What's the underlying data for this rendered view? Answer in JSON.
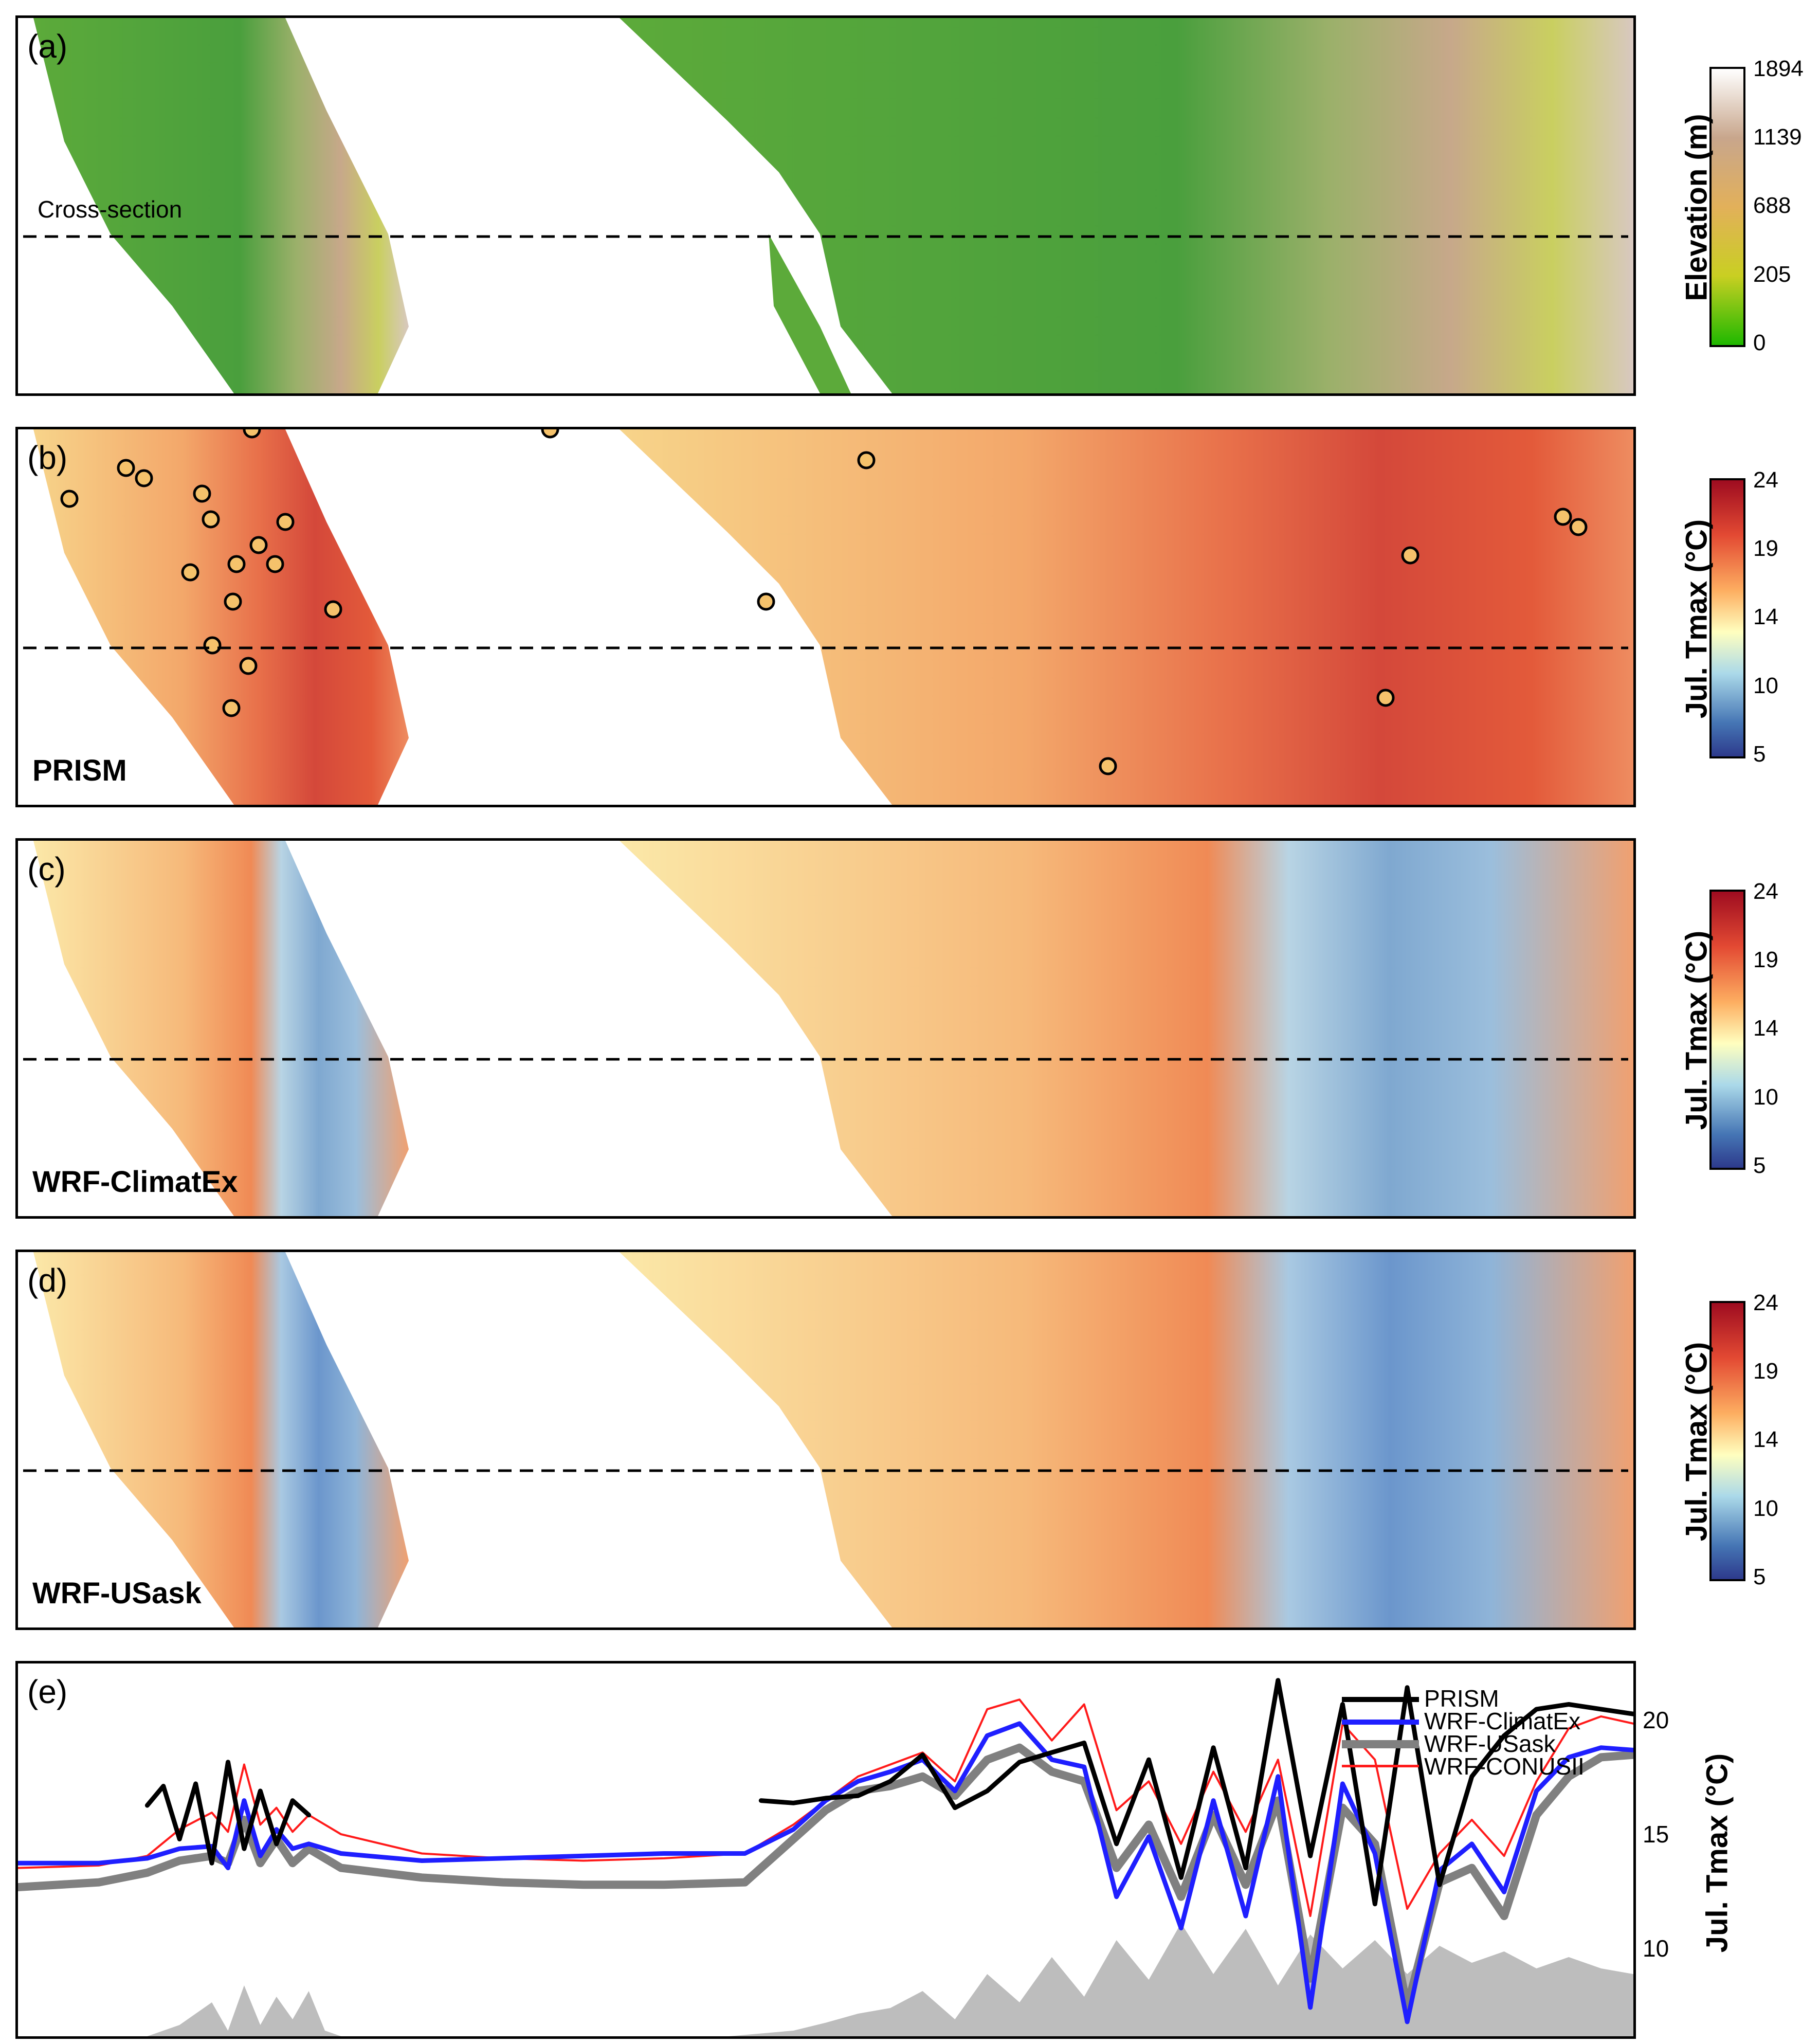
{
  "panels": {
    "a": {
      "label": "(a)",
      "cross_section_label": "Cross-section"
    },
    "b": {
      "label": "(b)",
      "model": "PRISM"
    },
    "c": {
      "label": "(c)",
      "model": "WRF-ClimatEx"
    },
    "d": {
      "label": "(d)",
      "model": "WRF-USask"
    },
    "e": {
      "label": "(e)"
    }
  },
  "colorbars": {
    "elevation": {
      "title": "Elevation (m)",
      "ticks": [
        "1894",
        "1139",
        "688",
        "205",
        "0"
      ],
      "colors": [
        "#ffffff",
        "#c8a68c",
        "#e2b05a",
        "#c9cf22",
        "#1fb800"
      ]
    },
    "tmax": {
      "title": "Jul. Tmax (°C)",
      "ticks": [
        "24",
        "19",
        "14",
        "10",
        "5"
      ],
      "colors": [
        "#9e0c20",
        "#e34a33",
        "#fdae61",
        "#ffffbf",
        "#abd9e9",
        "#4575b4",
        "#2d3a8c"
      ]
    }
  },
  "chart_data": {
    "type": "line",
    "ylabel": "Jul. Tmax (°C)",
    "yticks": [
      10,
      15,
      20
    ],
    "ylim": [
      7,
      22.5
    ],
    "xlim": [
      0,
      100
    ],
    "legend_position": "top-right",
    "series": [
      {
        "name": "PRISM",
        "color": "#000000",
        "x": [
          8,
          9,
          10,
          11,
          12,
          13,
          14,
          15,
          16,
          17,
          18,
          19,
          20,
          46,
          48,
          50,
          52,
          54,
          56,
          58,
          60,
          62,
          64,
          66,
          68,
          70,
          72,
          74,
          76,
          78,
          80,
          82,
          84,
          86,
          88,
          90,
          92,
          94,
          96,
          98,
          100
        ],
        "y": [
          16.6,
          17.4,
          15.2,
          17.5,
          14.2,
          18.4,
          14.8,
          17.2,
          15.0,
          16.8,
          16.2,
          null,
          null,
          16.8,
          16.7,
          16.9,
          17.0,
          17.6,
          18.7,
          16.5,
          17.2,
          18.4,
          18.8,
          19.2,
          15.0,
          18.5,
          13.6,
          19.0,
          14.0,
          21.8,
          14.5,
          20.8,
          12.5,
          21.5,
          13.3,
          17.8,
          19.5,
          20.6,
          20.8,
          20.6,
          20.4
        ]
      },
      {
        "name": "WRF-ClimatEx",
        "color": "#1f1fff",
        "x": [
          0,
          5,
          8,
          10,
          12,
          13,
          14,
          15,
          16,
          17,
          18,
          20,
          25,
          30,
          35,
          40,
          45,
          48,
          50,
          52,
          54,
          56,
          58,
          60,
          62,
          64,
          66,
          68,
          70,
          72,
          74,
          76,
          78,
          80,
          82,
          84,
          86,
          88,
          90,
          92,
          94,
          96,
          98,
          100
        ],
        "y": [
          14.2,
          14.2,
          14.4,
          14.8,
          14.9,
          14.0,
          16.8,
          14.5,
          15.6,
          14.8,
          15.0,
          14.6,
          14.3,
          14.4,
          14.5,
          14.6,
          14.6,
          15.6,
          16.8,
          17.6,
          18.0,
          18.5,
          17.2,
          19.5,
          20.0,
          18.5,
          18.2,
          12.8,
          15.3,
          11.5,
          16.8,
          12.0,
          17.8,
          8.2,
          17.5,
          14.6,
          7.6,
          13.9,
          15.0,
          13.0,
          17.2,
          18.6,
          19.0,
          18.9
        ]
      },
      {
        "name": "WRF-USask",
        "color": "#808080",
        "x": [
          0,
          5,
          8,
          10,
          12,
          13,
          14,
          15,
          16,
          17,
          18,
          20,
          25,
          30,
          35,
          40,
          45,
          48,
          50,
          52,
          54,
          56,
          58,
          60,
          62,
          64,
          66,
          68,
          70,
          72,
          74,
          76,
          78,
          80,
          82,
          84,
          86,
          88,
          90,
          92,
          94,
          96,
          98,
          100
        ],
        "y": [
          13.2,
          13.4,
          13.8,
          14.3,
          14.5,
          14.2,
          16.0,
          14.2,
          15.2,
          14.2,
          14.8,
          14.0,
          13.6,
          13.4,
          13.3,
          13.3,
          13.4,
          15.2,
          16.4,
          17.2,
          17.4,
          17.8,
          17.0,
          18.5,
          19.0,
          18.0,
          17.6,
          14.0,
          15.8,
          12.8,
          16.2,
          13.3,
          16.8,
          9.4,
          16.5,
          15.0,
          8.2,
          13.4,
          14.0,
          12.0,
          16.2,
          17.8,
          18.6,
          18.7
        ]
      },
      {
        "name": "WRF-CONUSII",
        "color": "#ff1a1a",
        "x": [
          0,
          5,
          8,
          10,
          12,
          13,
          14,
          15,
          16,
          17,
          18,
          20,
          25,
          30,
          35,
          40,
          45,
          48,
          50,
          52,
          54,
          56,
          58,
          60,
          62,
          64,
          66,
          68,
          70,
          72,
          74,
          76,
          78,
          80,
          82,
          84,
          86,
          88,
          90,
          92,
          94,
          96,
          98,
          100
        ],
        "y": [
          14.0,
          14.1,
          14.5,
          15.6,
          16.3,
          15.5,
          18.3,
          15.8,
          16.5,
          15.5,
          16.2,
          15.4,
          14.6,
          14.4,
          14.3,
          14.4,
          14.6,
          15.8,
          16.8,
          17.8,
          18.3,
          18.8,
          17.6,
          20.6,
          21.0,
          19.3,
          20.8,
          16.4,
          17.6,
          15.0,
          18.0,
          15.5,
          18.5,
          12.0,
          20.0,
          18.5,
          12.3,
          14.6,
          16.0,
          14.5,
          17.6,
          19.8,
          20.3,
          20.0
        ]
      }
    ],
    "elevation_profile": {
      "description_fill_color": "#bdbdbd",
      "x": [
        0,
        8,
        10,
        12,
        13,
        14,
        15,
        16,
        17,
        18,
        19,
        20,
        44,
        48,
        50,
        52,
        54,
        56,
        58,
        60,
        62,
        64,
        66,
        68,
        70,
        72,
        74,
        76,
        78,
        80,
        82,
        84,
        86,
        88,
        90,
        92,
        94,
        96,
        98,
        100
      ],
      "y": [
        0,
        0,
        0.1,
        0.3,
        0.05,
        0.45,
        0.1,
        0.35,
        0.15,
        0.4,
        0.05,
        0,
        0,
        0.05,
        0.12,
        0.2,
        0.25,
        0.4,
        0.15,
        0.55,
        0.3,
        0.7,
        0.35,
        0.85,
        0.5,
        1.0,
        0.55,
        0.95,
        0.45,
        0.9,
        0.6,
        0.85,
        0.55,
        0.8,
        0.65,
        0.75,
        0.6,
        0.7,
        0.6,
        0.55
      ]
    }
  }
}
